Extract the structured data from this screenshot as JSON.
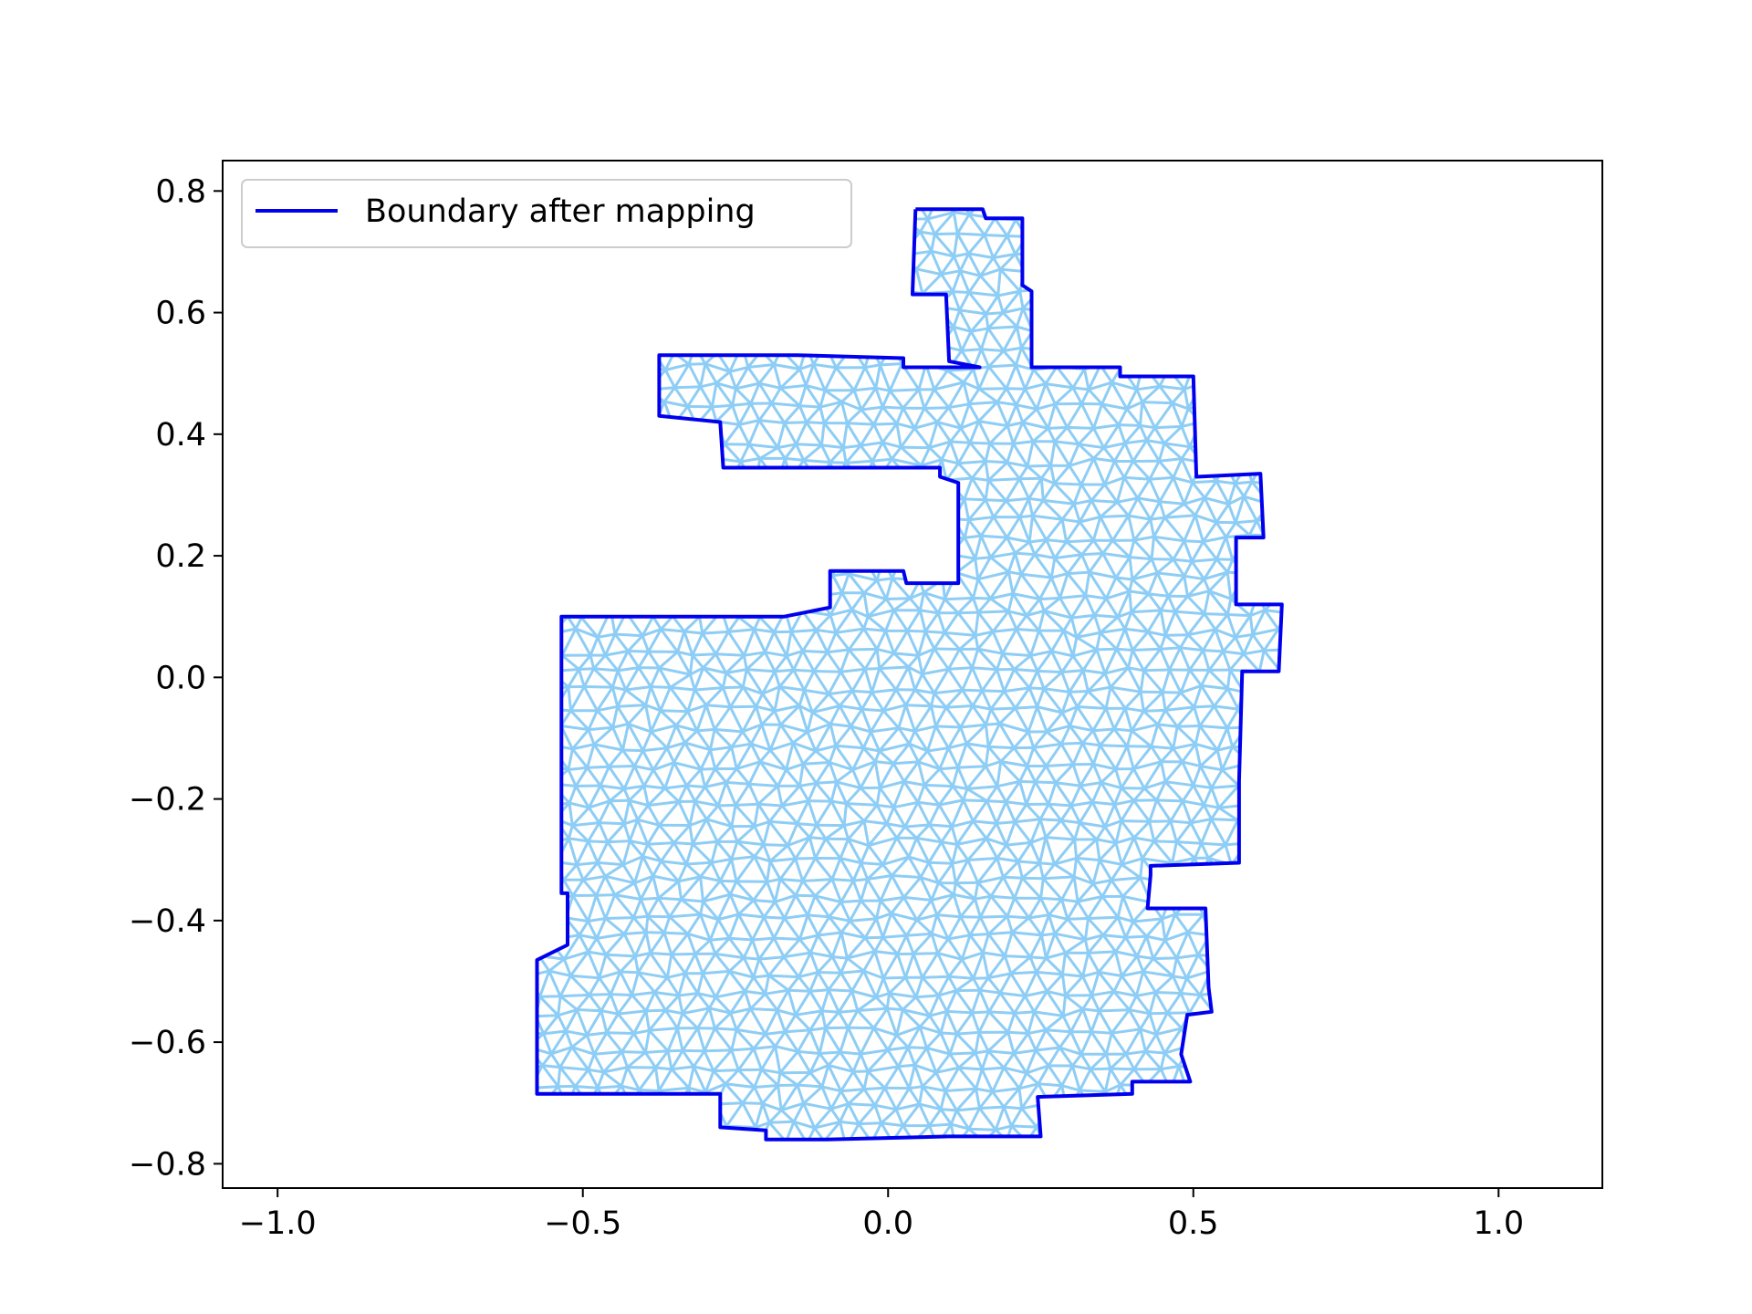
{
  "chart_data": {
    "type": "line",
    "title": "",
    "xlabel": "",
    "ylabel": "",
    "xlim": [
      -1.09,
      1.17
    ],
    "ylim": [
      -0.84,
      0.85
    ],
    "x_ticks": [
      -1.0,
      -0.5,
      0.0,
      0.5,
      1.0
    ],
    "y_ticks": [
      0.8,
      0.6,
      0.4,
      0.2,
      0.0,
      -0.2,
      -0.4,
      -0.6,
      -0.8
    ],
    "x_tick_labels": [
      "−1.0",
      "−0.5",
      "0.0",
      "0.5",
      "1.0"
    ],
    "y_tick_labels": [
      "0.8",
      "0.6",
      "0.4",
      "0.2",
      "0.0",
      "−0.2",
      "−0.4",
      "−0.6",
      "−0.8"
    ],
    "grid": false,
    "legend": {
      "position": "top-left",
      "entries": [
        "Boundary after mapping"
      ]
    },
    "colors": {
      "boundary": "#0000ee",
      "mesh": "#8ecdf5",
      "axes": "#000000"
    },
    "mesh": {
      "description_visible": false,
      "spacing": 0.036
    },
    "series": [
      {
        "name": "Boundary after mapping",
        "points": [
          [
            0.045,
            0.77
          ],
          [
            0.155,
            0.77
          ],
          [
            0.16,
            0.755
          ],
          [
            0.22,
            0.755
          ],
          [
            0.22,
            0.645
          ],
          [
            0.235,
            0.635
          ],
          [
            0.235,
            0.51
          ],
          [
            0.38,
            0.51
          ],
          [
            0.38,
            0.495
          ],
          [
            0.5,
            0.495
          ],
          [
            0.505,
            0.33
          ],
          [
            0.61,
            0.335
          ],
          [
            0.615,
            0.23
          ],
          [
            0.57,
            0.23
          ],
          [
            0.57,
            0.12
          ],
          [
            0.645,
            0.12
          ],
          [
            0.64,
            0.01
          ],
          [
            0.58,
            0.01
          ],
          [
            0.575,
            -0.17
          ],
          [
            0.575,
            -0.305
          ],
          [
            0.43,
            -0.31
          ],
          [
            0.43,
            -0.325
          ],
          [
            0.425,
            -0.38
          ],
          [
            0.52,
            -0.38
          ],
          [
            0.525,
            -0.51
          ],
          [
            0.53,
            -0.55
          ],
          [
            0.49,
            -0.555
          ],
          [
            0.48,
            -0.62
          ],
          [
            0.495,
            -0.665
          ],
          [
            0.4,
            -0.665
          ],
          [
            0.4,
            -0.685
          ],
          [
            0.245,
            -0.69
          ],
          [
            0.25,
            -0.755
          ],
          [
            0.1,
            -0.755
          ],
          [
            -0.1,
            -0.76
          ],
          [
            -0.2,
            -0.76
          ],
          [
            -0.2,
            -0.745
          ],
          [
            -0.275,
            -0.74
          ],
          [
            -0.275,
            -0.685
          ],
          [
            -0.575,
            -0.685
          ],
          [
            -0.575,
            -0.465
          ],
          [
            -0.525,
            -0.44
          ],
          [
            -0.525,
            -0.355
          ],
          [
            -0.535,
            -0.355
          ],
          [
            -0.535,
            0.1
          ],
          [
            -0.3,
            0.1
          ],
          [
            -0.17,
            0.1
          ],
          [
            -0.095,
            0.115
          ],
          [
            -0.095,
            0.175
          ],
          [
            0.025,
            0.175
          ],
          [
            0.03,
            0.155
          ],
          [
            0.115,
            0.155
          ],
          [
            0.115,
            0.32
          ],
          [
            0.085,
            0.33
          ],
          [
            0.085,
            0.345
          ],
          [
            -0.03,
            0.345
          ],
          [
            -0.27,
            0.345
          ],
          [
            -0.275,
            0.42
          ],
          [
            -0.375,
            0.43
          ],
          [
            -0.375,
            0.53
          ],
          [
            -0.2,
            0.53
          ],
          [
            -0.15,
            0.53
          ],
          [
            0.025,
            0.525
          ],
          [
            0.025,
            0.51
          ],
          [
            0.15,
            0.51
          ],
          [
            0.1,
            0.52
          ],
          [
            0.095,
            0.63
          ],
          [
            0.04,
            0.63
          ],
          [
            0.045,
            0.77
          ]
        ]
      }
    ]
  }
}
